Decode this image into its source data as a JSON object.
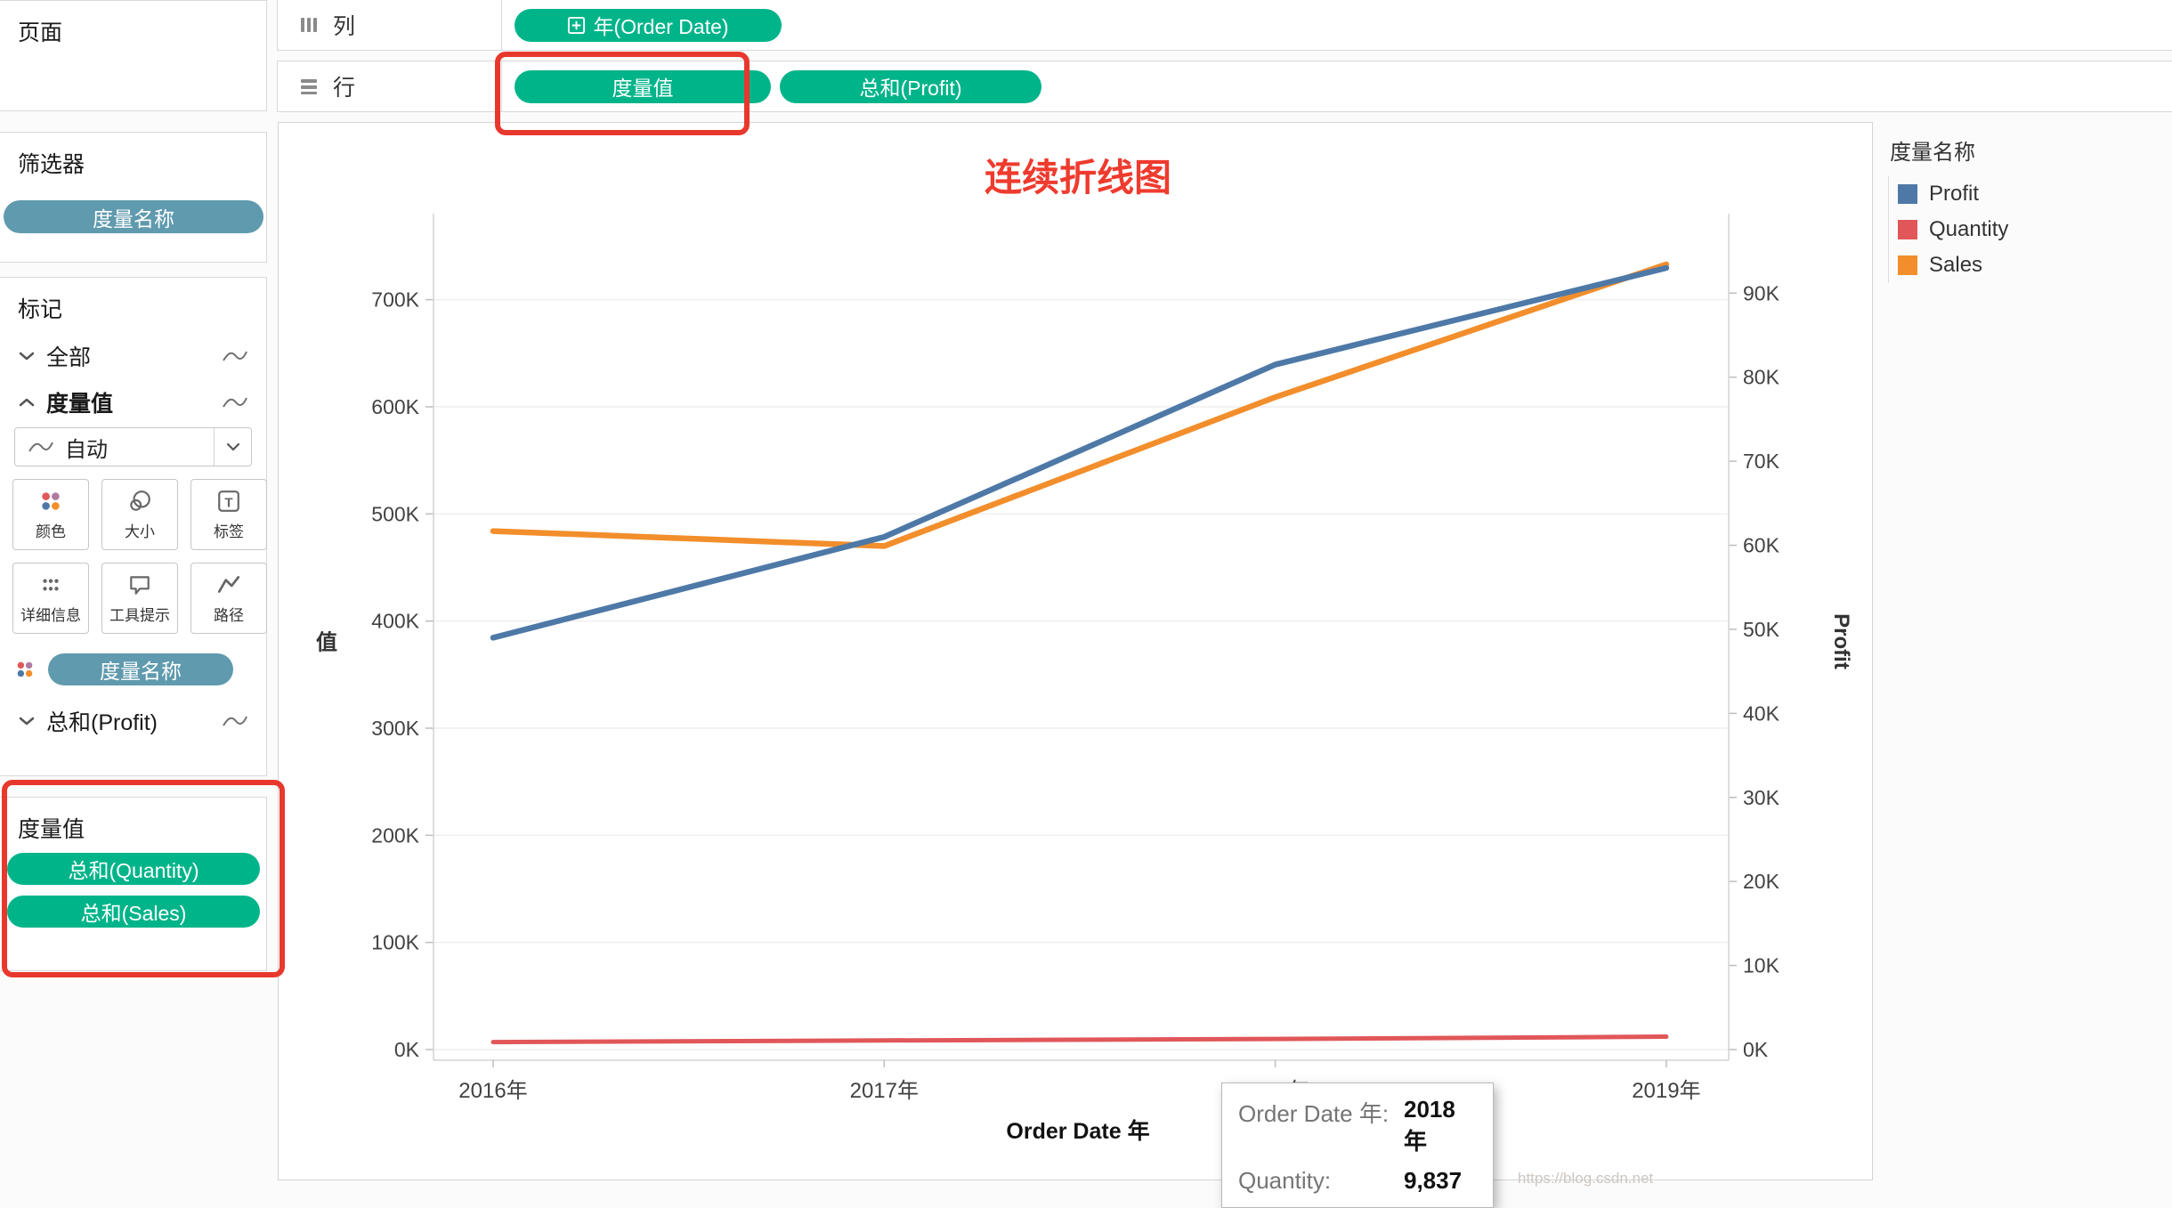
{
  "colors": {
    "pill_green": "#00b48a",
    "pill_teal": "#5f9aae",
    "annotation_red": "#e8382d",
    "title_red": "#ee3b2e"
  },
  "sidebar": {
    "pages": {
      "label": "页面"
    },
    "filters": {
      "label": "筛选器",
      "pill": "度量名称"
    },
    "marks": {
      "label": "标记",
      "all_row": "全部",
      "measure_values_row": "度量值",
      "dropdown_value": "自动",
      "buttons": [
        {
          "label": "颜色"
        },
        {
          "label": "大小"
        },
        {
          "label": "标签"
        },
        {
          "label": "详细信息"
        },
        {
          "label": "工具提示"
        },
        {
          "label": "路径"
        }
      ],
      "color_pill": "度量名称",
      "profit_row": "总和(Profit)"
    },
    "measure_values_card": {
      "label": "度量值",
      "pills": [
        "总和(Quantity)",
        "总和(Sales)"
      ]
    }
  },
  "shelves": {
    "columns": {
      "label": "列",
      "pill": "年(Order Date)"
    },
    "rows": {
      "label": "行",
      "pill_measure": "度量值",
      "pill_profit": "总和(Profit)"
    }
  },
  "legend": {
    "title": "度量名称",
    "items": [
      {
        "label": "Profit",
        "color": "#4e79a7"
      },
      {
        "label": "Quantity",
        "color": "#e15759"
      },
      {
        "label": "Sales",
        "color": "#f28e2b"
      }
    ]
  },
  "tooltip": {
    "rows": [
      {
        "label": "Order Date 年:",
        "value": "2018年"
      },
      {
        "label": "Quantity:",
        "value": "9,837"
      }
    ]
  },
  "watermark": "https://blog.csdn.net",
  "chart_data": {
    "type": "line",
    "title": "连续折线图",
    "x_categories": [
      "2016年",
      "2017年",
      "2018年",
      "2019年"
    ],
    "xlabel": "Order Date 年",
    "grid": true,
    "legend_position": "right",
    "left_axis": {
      "label": "值",
      "step": 100000,
      "ticks": [
        "0K",
        "100K",
        "200K",
        "300K",
        "400K",
        "500K",
        "600K",
        "700K"
      ],
      "range": [
        0,
        772000
      ]
    },
    "right_axis": {
      "label": "Profit",
      "step": 10000,
      "ticks": [
        "0K",
        "10K",
        "20K",
        "30K",
        "40K",
        "50K",
        "60K",
        "70K",
        "80K",
        "90K"
      ],
      "range": [
        0,
        98400
      ]
    },
    "series": [
      {
        "name": "Profit",
        "axis": "right",
        "color": "#4e79a7",
        "values": [
          49000,
          61000,
          81500,
          93000
        ]
      },
      {
        "name": "Quantity",
        "axis": "left",
        "color": "#e15759",
        "values": [
          7000,
          8500,
          9837,
          12000
        ]
      },
      {
        "name": "Sales",
        "axis": "left",
        "color": "#f28e2b",
        "values": [
          484000,
          470000,
          609000,
          733000
        ]
      }
    ]
  }
}
